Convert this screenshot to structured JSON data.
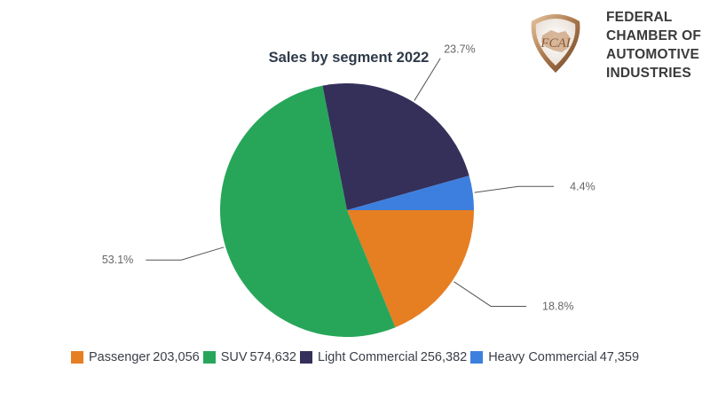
{
  "organization": {
    "logo_text": "FCAI",
    "name_lines": [
      "FEDERAL",
      "CHAMBER OF",
      "AUTOMOTIVE",
      "INDUSTRIES"
    ]
  },
  "chart_data": {
    "type": "pie",
    "title": "Sales by segment 2022",
    "slices": [
      {
        "name": "Passenger",
        "value": 203056,
        "value_label": "203,056",
        "percent_label": "18.8%",
        "color": "#e67e22"
      },
      {
        "name": "SUV",
        "value": 574632,
        "value_label": "574,632",
        "percent_label": "53.1%",
        "color": "#27a65a"
      },
      {
        "name": "Light Commercial",
        "value": 256382,
        "value_label": "256,382",
        "percent_label": "23.7%",
        "color": "#34305a"
      },
      {
        "name": "Heavy Commercial",
        "value": 47359,
        "value_label": "47,359",
        "percent_label": "4.4%",
        "color": "#3d7fde"
      }
    ],
    "legend_position": "bottom"
  }
}
